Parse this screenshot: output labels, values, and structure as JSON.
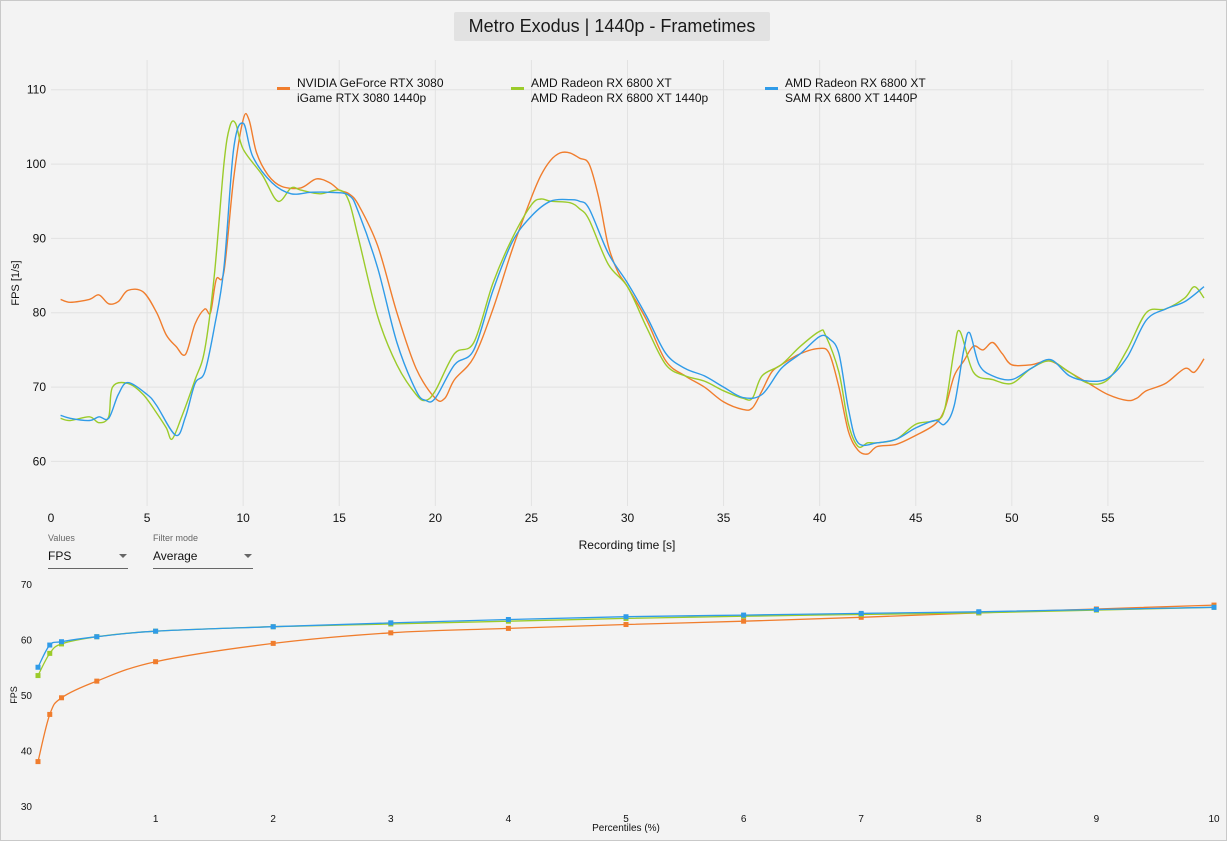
{
  "window": {
    "title": "Metro Exodus | 1440p - Frametimes"
  },
  "controls": {
    "values": {
      "label": "Values",
      "selected": "FPS"
    },
    "filter_mode": {
      "label": "Filter mode",
      "selected": "Average"
    }
  },
  "chart_data": [
    {
      "type": "line",
      "title": "Metro Exodus | 1440p - Frametimes",
      "xlabel": "Recording time [s]",
      "ylabel": "FPS [1/s]",
      "xlim": [
        0,
        60
      ],
      "ylim": [
        54,
        114
      ],
      "x_ticks": [
        0,
        5,
        10,
        15,
        20,
        25,
        30,
        35,
        40,
        45,
        50,
        55
      ],
      "y_ticks": [
        60,
        70,
        80,
        90,
        100,
        110
      ],
      "grid": true,
      "legend_position": "top",
      "series": [
        {
          "name_line1": "NVIDIA GeForce RTX 3080",
          "name_line2": "iGame RTX 3080 1440p",
          "color": "#f07d2d",
          "points": [
            [
              0.5,
              81.8
            ],
            [
              1,
              81.4
            ],
            [
              2,
              81.8
            ],
            [
              2.5,
              82.4
            ],
            [
              3,
              81.2
            ],
            [
              3.5,
              81.5
            ],
            [
              4,
              83.0
            ],
            [
              4.8,
              82.8
            ],
            [
              5.5,
              80.0
            ],
            [
              6,
              77.0
            ],
            [
              6.5,
              75.5
            ],
            [
              7,
              74.4
            ],
            [
              7.5,
              78.5
            ],
            [
              8,
              80.5
            ],
            [
              8.3,
              80.0
            ],
            [
              8.6,
              84.5
            ],
            [
              9,
              85.5
            ],
            [
              9.5,
              98.0
            ],
            [
              10,
              106.0
            ],
            [
              10.3,
              106.0
            ],
            [
              10.7,
              101.5
            ],
            [
              11.3,
              98.5
            ],
            [
              12,
              97.0
            ],
            [
              13,
              96.8
            ],
            [
              13.8,
              98.0
            ],
            [
              14.5,
              97.5
            ],
            [
              15,
              96.5
            ],
            [
              15.5,
              96.0
            ],
            [
              16,
              94.5
            ],
            [
              17,
              89.0
            ],
            [
              18,
              80.0
            ],
            [
              19,
              72.5
            ],
            [
              20,
              68.5
            ],
            [
              20.5,
              68.5
            ],
            [
              21,
              71.0
            ],
            [
              22,
              74.0
            ],
            [
              23,
              80.5
            ],
            [
              24,
              88.5
            ],
            [
              25,
              95.5
            ],
            [
              25.5,
              98.5
            ],
            [
              26,
              100.5
            ],
            [
              26.5,
              101.5
            ],
            [
              27,
              101.5
            ],
            [
              27.5,
              100.8
            ],
            [
              28,
              100.0
            ],
            [
              28.5,
              95.5
            ],
            [
              29,
              89.0
            ],
            [
              29.5,
              85.5
            ],
            [
              30,
              83.5
            ],
            [
              31,
              79.0
            ],
            [
              32,
              73.5
            ],
            [
              33,
              71.5
            ],
            [
              34,
              70.0
            ],
            [
              35,
              68.0
            ],
            [
              36,
              67.0
            ],
            [
              36.5,
              67.2
            ],
            [
              37,
              69.5
            ],
            [
              37.5,
              72.0
            ],
            [
              38,
              73.0
            ],
            [
              39,
              74.5
            ],
            [
              40,
              75.2
            ],
            [
              40.5,
              74.5
            ],
            [
              41,
              70.0
            ],
            [
              41.5,
              64.0
            ],
            [
              42,
              61.5
            ],
            [
              42.5,
              61.0
            ],
            [
              43,
              62.0
            ],
            [
              44,
              62.3
            ],
            [
              45,
              63.5
            ],
            [
              46,
              65.0
            ],
            [
              46.5,
              67.0
            ],
            [
              47,
              71.5
            ],
            [
              47.5,
              73.5
            ],
            [
              48,
              75.5
            ],
            [
              48.5,
              75.0
            ],
            [
              49,
              76.0
            ],
            [
              49.5,
              74.5
            ],
            [
              50,
              73.0
            ],
            [
              51,
              73.0
            ],
            [
              52,
              73.5
            ],
            [
              53,
              72.0
            ],
            [
              54,
              70.5
            ],
            [
              55,
              69.0
            ],
            [
              56,
              68.2
            ],
            [
              56.5,
              68.5
            ],
            [
              57,
              69.5
            ],
            [
              58,
              70.5
            ],
            [
              59,
              72.5
            ],
            [
              59.5,
              72.0
            ],
            [
              60,
              73.8
            ]
          ]
        },
        {
          "name_line1": "AMD Radeon RX 6800 XT",
          "name_line2": "AMD Radeon RX 6800 XT 1440p",
          "color": "#9bcb2a",
          "points": [
            [
              0.5,
              65.8
            ],
            [
              1,
              65.5
            ],
            [
              2,
              66.0
            ],
            [
              2.5,
              65.2
            ],
            [
              3,
              66.0
            ],
            [
              3.2,
              70.0
            ],
            [
              4,
              70.5
            ],
            [
              4.8,
              69.0
            ],
            [
              5.5,
              66.5
            ],
            [
              6,
              64.5
            ],
            [
              6.3,
              63.0
            ],
            [
              6.8,
              66.0
            ],
            [
              7.5,
              71.0
            ],
            [
              8,
              75.0
            ],
            [
              8.5,
              85.0
            ],
            [
              9,
              100.0
            ],
            [
              9.3,
              105.0
            ],
            [
              9.6,
              105.5
            ],
            [
              10,
              102.0
            ],
            [
              11,
              98.5
            ],
            [
              11.8,
              95.0
            ],
            [
              12.5,
              96.8
            ],
            [
              13,
              96.5
            ],
            [
              14,
              96.0
            ],
            [
              15,
              96.5
            ],
            [
              15.5,
              95.0
            ],
            [
              16,
              90.0
            ],
            [
              17,
              79.5
            ],
            [
              18,
              73.0
            ],
            [
              19,
              69.0
            ],
            [
              19.5,
              68.2
            ],
            [
              20,
              69.5
            ],
            [
              21,
              74.5
            ],
            [
              22,
              76.0
            ],
            [
              23,
              84.0
            ],
            [
              24,
              90.0
            ],
            [
              25,
              94.5
            ],
            [
              25.5,
              95.3
            ],
            [
              26,
              95.0
            ],
            [
              27,
              94.8
            ],
            [
              27.5,
              94.0
            ],
            [
              28,
              92.5
            ],
            [
              29,
              86.5
            ],
            [
              30,
              83.5
            ],
            [
              31,
              78.0
            ],
            [
              32,
              73.0
            ],
            [
              33,
              71.5
            ],
            [
              34,
              70.8
            ],
            [
              35,
              69.5
            ],
            [
              36,
              68.5
            ],
            [
              36.5,
              68.5
            ],
            [
              37,
              71.5
            ],
            [
              38,
              73.0
            ],
            [
              39,
              75.5
            ],
            [
              40,
              77.5
            ],
            [
              40.3,
              77.0
            ],
            [
              41,
              72.0
            ],
            [
              41.5,
              65.0
            ],
            [
              42,
              62.0
            ],
            [
              42.5,
              62.5
            ],
            [
              43,
              62.5
            ],
            [
              44,
              63.0
            ],
            [
              45,
              65.0
            ],
            [
              46,
              65.5
            ],
            [
              46.5,
              67.0
            ],
            [
              47,
              75.0
            ],
            [
              47.3,
              77.5
            ],
            [
              48,
              72.0
            ],
            [
              49,
              71.0
            ],
            [
              50,
              70.5
            ],
            [
              51,
              72.5
            ],
            [
              52,
              73.5
            ],
            [
              53,
              72.0
            ],
            [
              54,
              70.5
            ],
            [
              55,
              71.0
            ],
            [
              56,
              75.0
            ],
            [
              57,
              80.0
            ],
            [
              58,
              80.5
            ],
            [
              59,
              82.0
            ],
            [
              59.5,
              83.5
            ],
            [
              60,
              82.0
            ]
          ]
        },
        {
          "name_line1": "AMD Radeon RX 6800 XT",
          "name_line2": "SAM RX 6800 XT 1440P",
          "color": "#2f9be8",
          "points": [
            [
              0.5,
              66.2
            ],
            [
              1,
              65.8
            ],
            [
              2,
              65.5
            ],
            [
              2.5,
              66.0
            ],
            [
              3,
              65.8
            ],
            [
              3.5,
              69.0
            ],
            [
              4,
              70.6
            ],
            [
              5,
              69.0
            ],
            [
              5.5,
              67.5
            ],
            [
              6.5,
              63.5
            ],
            [
              7,
              66.0
            ],
            [
              7.5,
              70.5
            ],
            [
              8,
              72.0
            ],
            [
              8.5,
              78.0
            ],
            [
              9,
              86.0
            ],
            [
              9.5,
              102.0
            ],
            [
              10,
              105.5
            ],
            [
              10.5,
              101.0
            ],
            [
              11.5,
              97.5
            ],
            [
              12.5,
              96.0
            ],
            [
              13.5,
              96.2
            ],
            [
              14.5,
              96.2
            ],
            [
              15.5,
              95.8
            ],
            [
              16,
              93.5
            ],
            [
              17,
              86.0
            ],
            [
              18,
              76.0
            ],
            [
              19,
              69.5
            ],
            [
              19.5,
              68.2
            ],
            [
              20,
              68.5
            ],
            [
              21,
              73.0
            ],
            [
              22,
              75.0
            ],
            [
              23,
              83.0
            ],
            [
              24,
              89.5
            ],
            [
              25,
              93.0
            ],
            [
              26,
              95.0
            ],
            [
              27,
              95.2
            ],
            [
              27.5,
              95.0
            ],
            [
              28,
              94.0
            ],
            [
              29,
              88.0
            ],
            [
              30,
              84.0
            ],
            [
              31,
              79.5
            ],
            [
              32,
              74.5
            ],
            [
              33,
              72.5
            ],
            [
              34,
              71.5
            ],
            [
              35,
              70.0
            ],
            [
              36,
              68.6
            ],
            [
              37,
              69.0
            ],
            [
              38,
              72.5
            ],
            [
              39,
              74.5
            ],
            [
              40,
              76.8
            ],
            [
              40.5,
              76.5
            ],
            [
              41,
              74.5
            ],
            [
              41.5,
              67.0
            ],
            [
              42,
              62.5
            ],
            [
              43,
              62.5
            ],
            [
              44,
              63.0
            ],
            [
              45,
              64.5
            ],
            [
              46,
              65.5
            ],
            [
              46.5,
              65.0
            ],
            [
              47,
              67.5
            ],
            [
              47.5,
              75.0
            ],
            [
              47.8,
              77.3
            ],
            [
              48.3,
              73.0
            ],
            [
              49,
              71.5
            ],
            [
              50,
              71.0
            ],
            [
              51,
              72.5
            ],
            [
              52,
              73.7
            ],
            [
              53,
              71.5
            ],
            [
              54,
              70.8
            ],
            [
              55,
              71.2
            ],
            [
              56,
              74.0
            ],
            [
              57,
              79.0
            ],
            [
              58,
              80.5
            ],
            [
              59,
              81.5
            ],
            [
              60,
              83.5
            ]
          ]
        }
      ]
    },
    {
      "type": "line",
      "xlabel": "Percentiles (%)",
      "ylabel": "FPS",
      "xlim": [
        0,
        10
      ],
      "ylim": [
        30,
        70
      ],
      "x_ticks": [
        1,
        2,
        3,
        4,
        5,
        6,
        7,
        8,
        9,
        10
      ],
      "y_ticks": [
        30,
        40,
        50,
        60,
        70
      ],
      "grid": false,
      "x": [
        0,
        0.1,
        0.2,
        0.5,
        1,
        2,
        3,
        4,
        5,
        6,
        7,
        8,
        9,
        10
      ],
      "series": [
        {
          "color": "#f07d2d",
          "values": [
            38.0,
            46.5,
            49.5,
            52.5,
            56.0,
            59.3,
            61.2,
            62.0,
            62.7,
            63.3,
            64.0,
            64.8,
            65.5,
            66.2
          ]
        },
        {
          "color": "#9bcb2a",
          "values": [
            53.5,
            57.5,
            59.2,
            60.5,
            61.5,
            62.3,
            62.8,
            63.3,
            63.8,
            64.2,
            64.5,
            64.8,
            65.3,
            65.8
          ]
        },
        {
          "color": "#2f9be8",
          "values": [
            55.0,
            59.0,
            59.6,
            60.5,
            61.5,
            62.3,
            63.0,
            63.6,
            64.1,
            64.4,
            64.7,
            65.0,
            65.4,
            65.8
          ]
        }
      ]
    }
  ]
}
